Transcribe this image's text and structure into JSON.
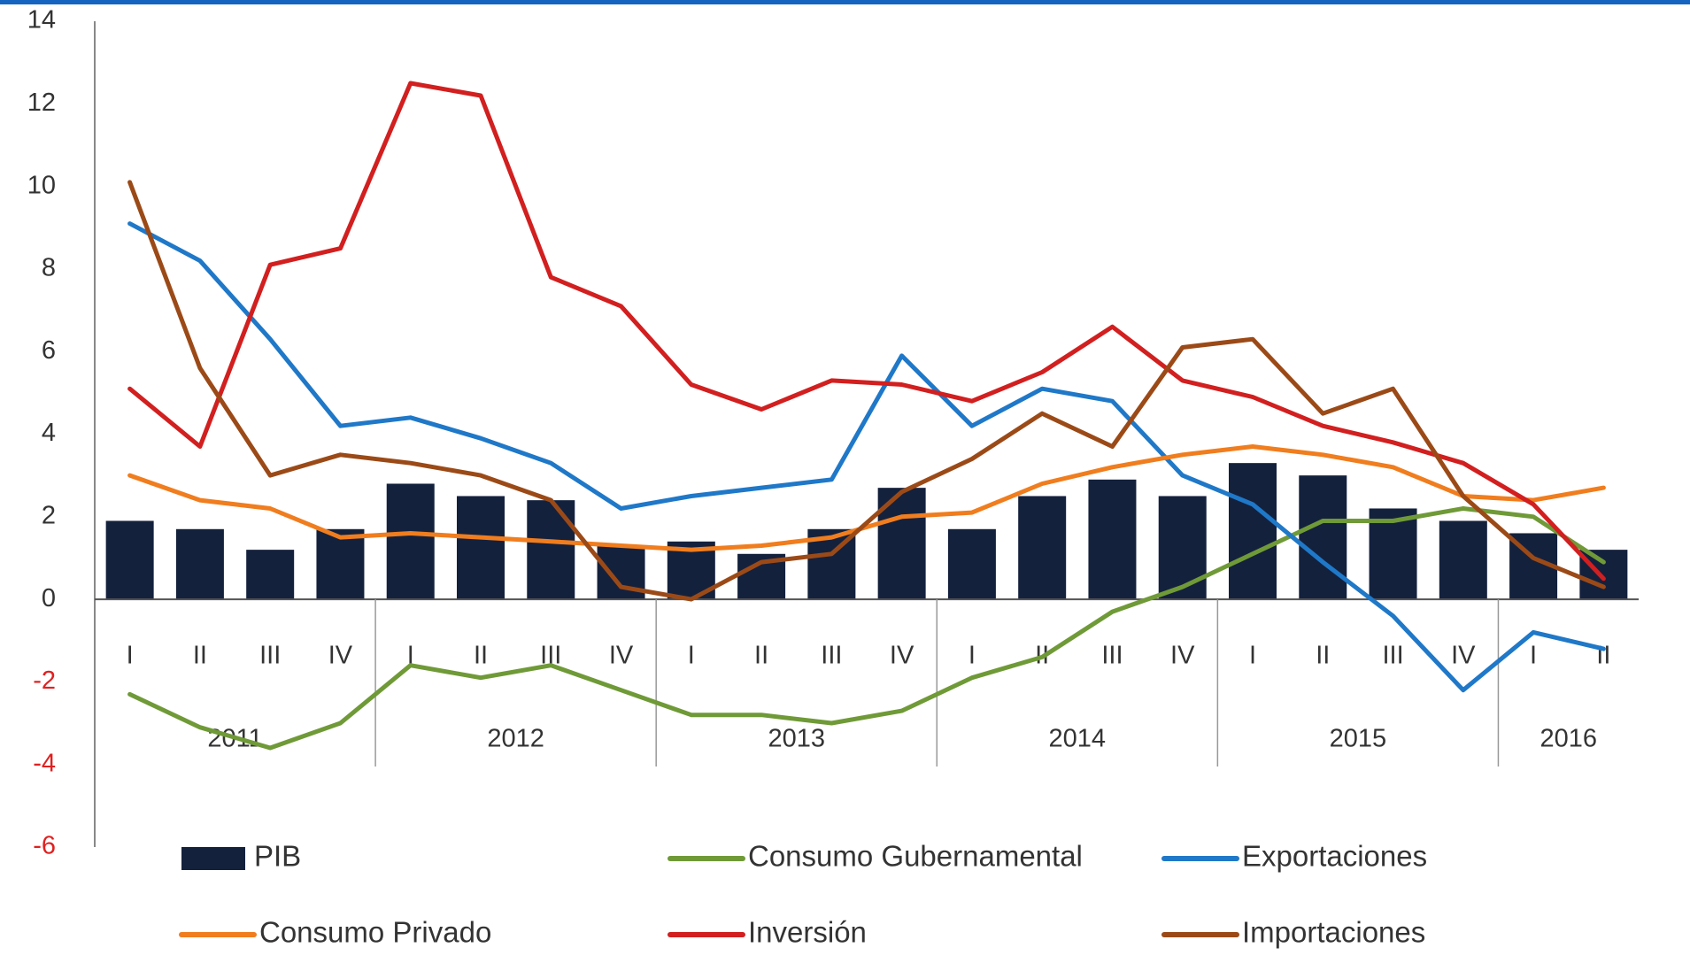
{
  "chart_data": {
    "type": "combo",
    "groups": [
      {
        "name": "2011",
        "categories": [
          "I",
          "II",
          "III",
          "IV"
        ]
      },
      {
        "name": "2012",
        "categories": [
          "I",
          "II",
          "III",
          "IV"
        ]
      },
      {
        "name": "2013",
        "categories": [
          "I",
          "II",
          "III",
          "IV"
        ]
      },
      {
        "name": "2014",
        "categories": [
          "I",
          "II",
          "III",
          "IV"
        ]
      },
      {
        "name": "2015",
        "categories": [
          "I",
          "II",
          "III",
          "IV"
        ]
      },
      {
        "name": "2016",
        "categories": [
          "I",
          "II"
        ]
      }
    ],
    "series": [
      {
        "name": "PIB",
        "type": "bar",
        "color": "#14213d",
        "values": [
          1.9,
          1.7,
          1.2,
          1.7,
          2.8,
          2.5,
          2.4,
          1.3,
          1.4,
          1.1,
          1.7,
          2.7,
          1.7,
          2.5,
          2.9,
          2.5,
          3.3,
          3.0,
          2.2,
          1.9,
          1.6,
          1.2
        ]
      },
      {
        "name": "Consumo Gubernamental",
        "type": "line",
        "color": "#6f9a37",
        "values": [
          -2.3,
          -3.1,
          -3.6,
          -3.0,
          -1.6,
          -1.9,
          -1.6,
          -2.2,
          -2.8,
          -2.8,
          -3.0,
          -2.7,
          -1.9,
          -1.4,
          -0.3,
          0.3,
          1.1,
          1.9,
          1.9,
          2.2,
          2.0,
          0.9
        ]
      },
      {
        "name": "Exportaciones",
        "type": "line",
        "color": "#1f78c8",
        "values": [
          9.1,
          8.2,
          6.3,
          4.2,
          4.4,
          3.9,
          3.3,
          2.2,
          2.5,
          2.7,
          2.9,
          5.9,
          4.2,
          5.1,
          4.8,
          3.0,
          2.3,
          0.9,
          -0.4,
          -2.2,
          -0.8,
          -1.2
        ]
      },
      {
        "name": "Consumo Privado",
        "type": "line",
        "color": "#f07d1e",
        "values": [
          3.0,
          2.4,
          2.2,
          1.5,
          1.6,
          1.5,
          1.4,
          1.3,
          1.2,
          1.3,
          1.5,
          2.0,
          2.1,
          2.8,
          3.2,
          3.5,
          3.7,
          3.5,
          3.2,
          2.5,
          2.4,
          2.7
        ]
      },
      {
        "name": "Inversión",
        "type": "line",
        "color": "#d21f1f",
        "values": [
          5.1,
          3.7,
          8.1,
          8.5,
          12.5,
          12.2,
          7.8,
          7.1,
          5.2,
          4.6,
          5.3,
          5.2,
          4.8,
          5.5,
          6.6,
          5.3,
          4.9,
          4.2,
          3.8,
          3.3,
          2.3,
          0.5
        ]
      },
      {
        "name": "Importaciones",
        "type": "line",
        "color": "#9b4a17",
        "values": [
          10.1,
          5.6,
          3.0,
          3.5,
          3.3,
          3.0,
          2.4,
          0.3,
          0.0,
          0.9,
          1.1,
          2.6,
          3.4,
          4.5,
          3.7,
          6.1,
          6.3,
          4.5,
          5.1,
          2.5,
          1.0,
          0.3
        ]
      }
    ],
    "ylim": [
      -6,
      14
    ],
    "yticks": [
      -6,
      -4,
      -2,
      0,
      2,
      4,
      6,
      8,
      10,
      12,
      14
    ],
    "negative_tick_color": "#e02020",
    "grid": false
  }
}
